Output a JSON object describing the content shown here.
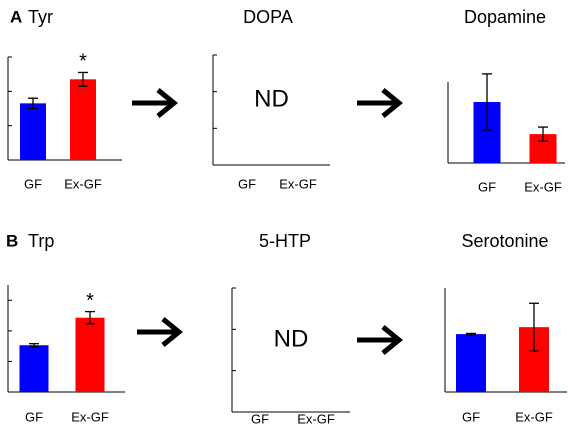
{
  "panel_labels": [
    "A",
    "B"
  ],
  "chart_data": [
    {
      "type": "bar",
      "title": "Tyr",
      "categories": [
        "GF",
        "Ex-GF"
      ],
      "values": [
        1.65,
        2.35
      ],
      "errors": [
        0.15,
        0.2
      ],
      "colors": [
        "#0000ff",
        "#ff0000"
      ],
      "ylim": [
        0,
        3
      ],
      "yticks": [
        1,
        2,
        3
      ],
      "annotation": "*"
    },
    {
      "type": "bar",
      "title": "DOPA",
      "categories": [
        "GF",
        "Ex-GF"
      ],
      "values": [
        null,
        null
      ],
      "errors": [
        null,
        null
      ],
      "colors": [
        "#0000ff",
        "#ff0000"
      ],
      "ylim": [
        0,
        3
      ],
      "yticks": [
        1,
        2,
        3
      ],
      "annotation": "ND"
    },
    {
      "type": "bar",
      "title": "Dopamine",
      "categories": [
        "GF",
        "Ex-GF"
      ],
      "values": [
        2.26,
        1.07
      ],
      "errors": [
        1.04,
        0.26
      ],
      "colors": [
        "#0000ff",
        "#ff0000"
      ],
      "ylim": [
        0,
        3
      ]
    },
    {
      "type": "bar",
      "title": "Trp",
      "categories": [
        "GF",
        "Ex-GF"
      ],
      "values": [
        1.53,
        2.43
      ],
      "errors": [
        0.05,
        0.2
      ],
      "colors": [
        "#0000ff",
        "#ff0000"
      ],
      "ylim": [
        0,
        3.5
      ],
      "yticks": [
        1,
        2,
        3
      ],
      "annotation": "*"
    },
    {
      "type": "bar",
      "title": "5-HTP",
      "categories": [
        "GF",
        "Ex-GF"
      ],
      "values": [
        null,
        null
      ],
      "errors": [
        null,
        null
      ],
      "colors": [
        "#0000ff",
        "#ff0000"
      ],
      "ylim": [
        0,
        3
      ],
      "yticks": [
        1,
        2,
        3
      ],
      "annotation": "ND"
    },
    {
      "type": "bar",
      "title": "Serotonine",
      "categories": [
        "GF",
        "Ex-GF"
      ],
      "values": [
        1.67,
        1.87
      ],
      "errors": [
        0.02,
        0.69
      ],
      "colors": [
        "#0000ff",
        "#ff0000"
      ],
      "ylim": [
        0,
        3
      ]
    }
  ]
}
